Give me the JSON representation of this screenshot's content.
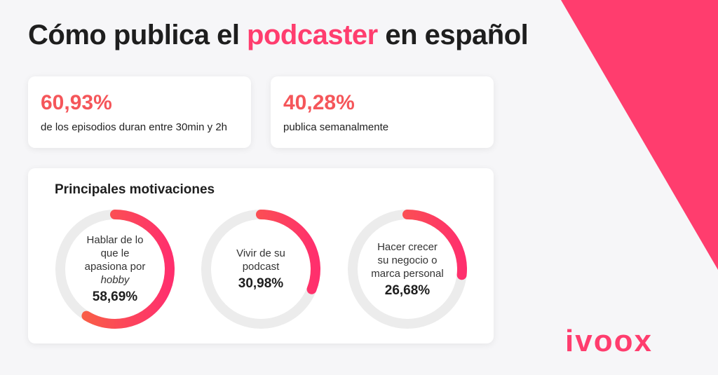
{
  "title": {
    "before": "Cómo publica el ",
    "highlight": "podcaster",
    "after": " en español"
  },
  "stats": [
    {
      "value": "60,93%",
      "label": "de los episodios duran entre 30min y 2h"
    },
    {
      "value": "40,28%",
      "label": "publica semanalmente"
    }
  ],
  "chart_data": {
    "type": "pie",
    "title": "Principales motivaciones",
    "categories": [
      "Hablar de lo que le apasiona por hobby",
      "Vivir de su podcast",
      "Hacer crecer su negocio o marca personal"
    ],
    "values": [
      58.69,
      30.98,
      26.68
    ],
    "value_labels": [
      "58,69%",
      "30,98%",
      "26,68%"
    ],
    "label_parts": [
      {
        "text": "Hablar de lo que le apasiona por",
        "italic": "hobby"
      },
      {
        "text": "Vivir de su podcast",
        "italic": ""
      },
      {
        "text": "Hacer crecer su negocio o marca personal",
        "italic": ""
      }
    ],
    "colors": {
      "start": "#f76a3d",
      "end": "#ff2f6d",
      "track": "#ececec"
    }
  },
  "logo": {
    "text": "ivoox",
    "color": "#ff3d6e"
  },
  "colors": {
    "accent": "#ff3d6e",
    "stat": "#f5565a",
    "background_shape": "#ff3d6e"
  }
}
